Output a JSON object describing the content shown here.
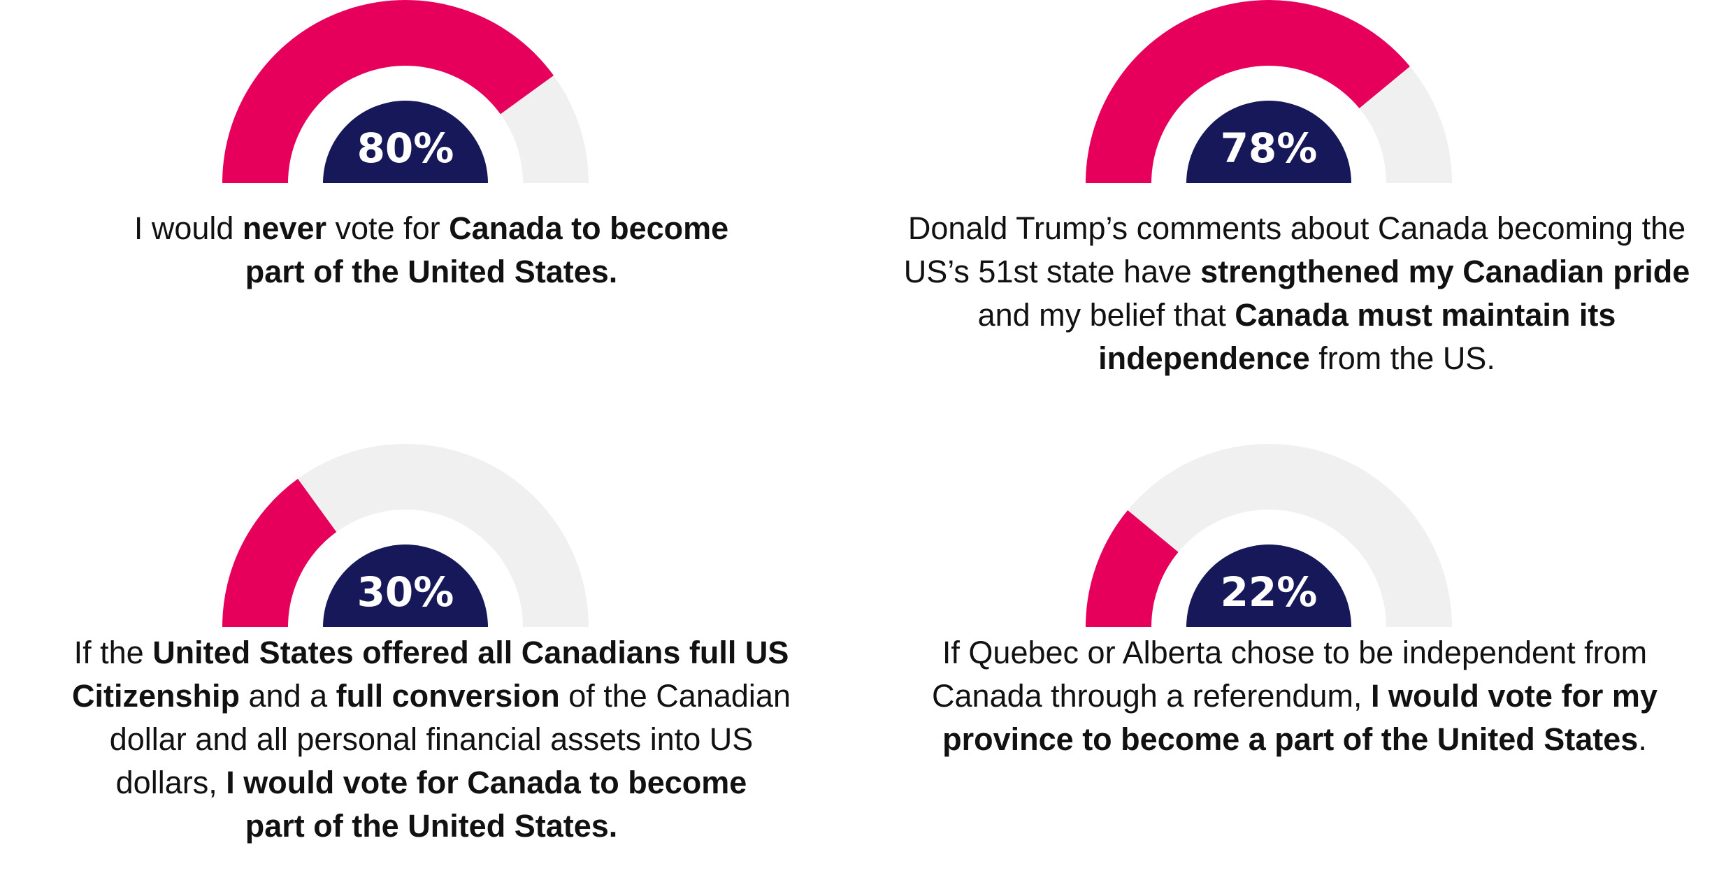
{
  "chart_data": [
    {
      "type": "gauge",
      "value": 80,
      "max": 100,
      "label": "80%",
      "caption": [
        {
          "text": "I would ",
          "bold": false
        },
        {
          "text": "never",
          "bold": true
        },
        {
          "text": " vote for ",
          "bold": false
        },
        {
          "text": "Canada to become",
          "bold": true
        },
        {
          "br": true
        },
        {
          "text": "part of the United States.",
          "bold": true
        }
      ]
    },
    {
      "type": "gauge",
      "value": 78,
      "max": 100,
      "label": "78%",
      "caption": [
        {
          "text": "Donald Trump’s comments about Canada becoming the",
          "bold": false
        },
        {
          "br": true
        },
        {
          "text": "US’s 51st state have ",
          "bold": false
        },
        {
          "text": "strengthened my Canadian pride",
          "bold": true
        },
        {
          "br": true
        },
        {
          "text": "and my belief that ",
          "bold": false
        },
        {
          "text": "Canada must maintain its",
          "bold": true
        },
        {
          "br": true
        },
        {
          "text": "independence",
          "bold": true
        },
        {
          "text": " from the US.",
          "bold": false
        }
      ]
    },
    {
      "type": "gauge",
      "value": 30,
      "max": 100,
      "label": "30%",
      "caption": [
        {
          "text": "If the ",
          "bold": false
        },
        {
          "text": "United States offered all Canadians full US",
          "bold": true
        },
        {
          "br": true
        },
        {
          "text": "Citizenship",
          "bold": true
        },
        {
          "text": " and a ",
          "bold": false
        },
        {
          "text": "full conversion",
          "bold": true
        },
        {
          "text": " of the Canadian",
          "bold": false
        },
        {
          "br": true
        },
        {
          "text": "dollar and all personal financial assets into US",
          "bold": false
        },
        {
          "br": true
        },
        {
          "text": "dollars, ",
          "bold": false
        },
        {
          "text": "I would vote for Canada to become",
          "bold": true
        },
        {
          "br": true
        },
        {
          "text": "part of the United States.",
          "bold": true
        }
      ]
    },
    {
      "type": "gauge",
      "value": 22,
      "max": 100,
      "label": "22%",
      "caption": [
        {
          "text": "If Quebec or Alberta chose to be independent from",
          "bold": false
        },
        {
          "br": true
        },
        {
          "text": "Canada through a referendum, ",
          "bold": false
        },
        {
          "text": "I would vote for my",
          "bold": true
        },
        {
          "br": true
        },
        {
          "text": "province to become a part of the United States",
          "bold": true
        },
        {
          "text": ".",
          "bold": false
        }
      ]
    }
  ],
  "colors": {
    "fill": "#E6005C",
    "track": "#F0F0F0",
    "center": "#16185A",
    "label": "#FFFFFF",
    "text": "#111111"
  }
}
